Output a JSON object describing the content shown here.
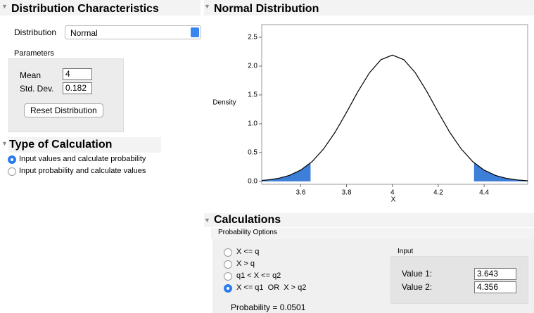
{
  "distribution_characteristics": {
    "title": "Distribution Characteristics",
    "distribution_label": "Distribution",
    "distribution_value": "Normal",
    "parameters_label": "Parameters",
    "mean_label": "Mean",
    "mean_value": "4",
    "std_label": "Std. Dev.",
    "std_value": "0.182",
    "reset_button": "Reset Distribution"
  },
  "type_of_calculation": {
    "title": "Type of Calculation",
    "options": [
      "Input values and calculate probability",
      "Input probability and calculate values"
    ],
    "selected": 0
  },
  "chart_data": {
    "type": "line",
    "title": "Normal Distribution",
    "y_label": "Density",
    "x_label": "X",
    "x": [
      3.43,
      3.45,
      3.5,
      3.55,
      3.6,
      3.65,
      3.7,
      3.75,
      3.8,
      3.85,
      3.9,
      3.95,
      4,
      4.05,
      4.1,
      4.15,
      4.2,
      4.25,
      4.3,
      4.35,
      4.4,
      4.45,
      4.5,
      4.55,
      4.59
    ],
    "values": [
      0.0163,
      0.0228,
      0.0503,
      0.1031,
      0.196,
      0.345,
      0.564,
      0.853,
      1.199,
      1.561,
      1.885,
      2.111,
      2.192,
      2.111,
      1.885,
      1.561,
      1.199,
      0.853,
      0.564,
      0.345,
      0.196,
      0.1031,
      0.0503,
      0.0228,
      0.0114
    ],
    "color": "#000000",
    "shade_color": "#3d7ed8",
    "xlim": [
      3.43,
      4.59
    ],
    "ylim": [
      -0.05,
      2.72
    ],
    "xticks": [
      3.6,
      3.8,
      4,
      4.2,
      4.4
    ],
    "yticks": [
      {
        "value": 0,
        "label": "0.0"
      },
      0.5,
      {
        "value": 1,
        "label": "1.0"
      },
      1.5,
      {
        "value": 2,
        "label": "2.0"
      },
      2.5
    ]
  },
  "calculations": {
    "title": "Calculations",
    "probability_options_label": "Probability Options",
    "options": [
      "X <= q",
      "X > q",
      "q1 < X <= q2",
      "X <= q1  OR  X > q2"
    ],
    "selected": 3,
    "input_label": "Input",
    "inputs": [
      {
        "label": "Value 1:",
        "value": "3.643"
      },
      {
        "label": "Value 2:",
        "value": "4.356"
      }
    ],
    "probability": "Probability = 0.0501"
  }
}
